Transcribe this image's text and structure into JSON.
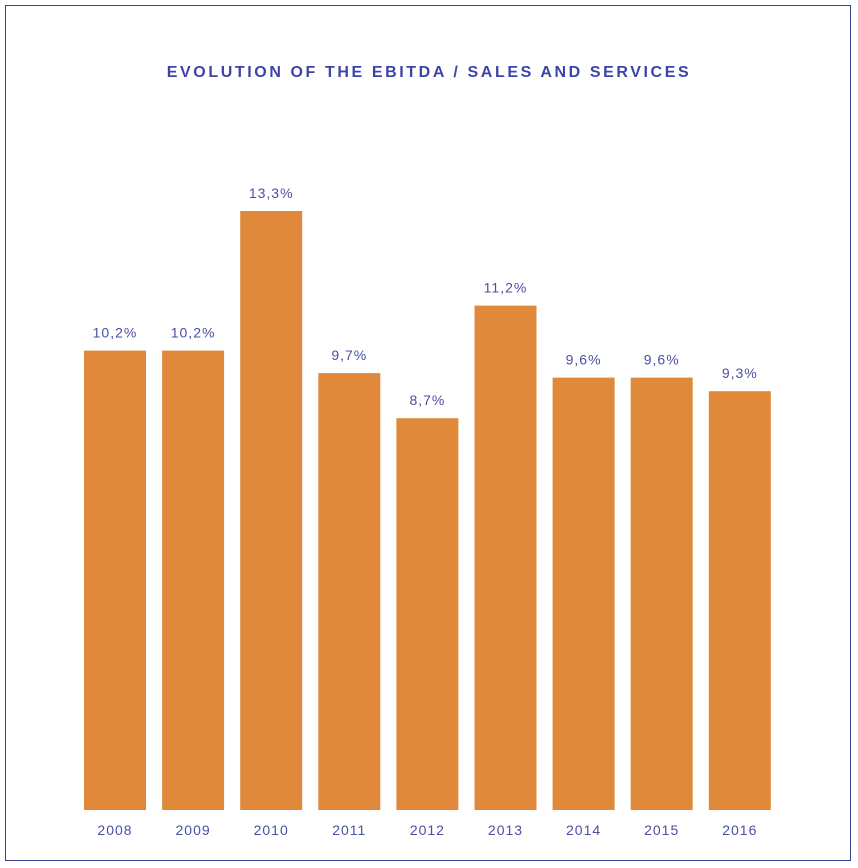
{
  "chart_data": {
    "type": "bar",
    "title": "EVOLUTION OF THE EBITDA / SALES AND SERVICES",
    "categories": [
      "2008",
      "2009",
      "2010",
      "2011",
      "2012",
      "2013",
      "2014",
      "2015",
      "2016"
    ],
    "values": [
      10.2,
      10.2,
      13.3,
      9.7,
      8.7,
      11.2,
      9.6,
      9.6,
      9.3
    ],
    "value_labels": [
      "10,2%",
      "10,2%",
      "13,3%",
      "9,7%",
      "8,7%",
      "11,2%",
      "9,6%",
      "9,6%",
      "9,3%"
    ],
    "xlabel": "",
    "ylabel": "",
    "ylim": [
      0,
      13.3
    ],
    "grid": false,
    "colors": {
      "bar": "#e0893a",
      "text": "#4a4fa6",
      "title": "#3d44a8",
      "frame": "#3d4591"
    }
  }
}
